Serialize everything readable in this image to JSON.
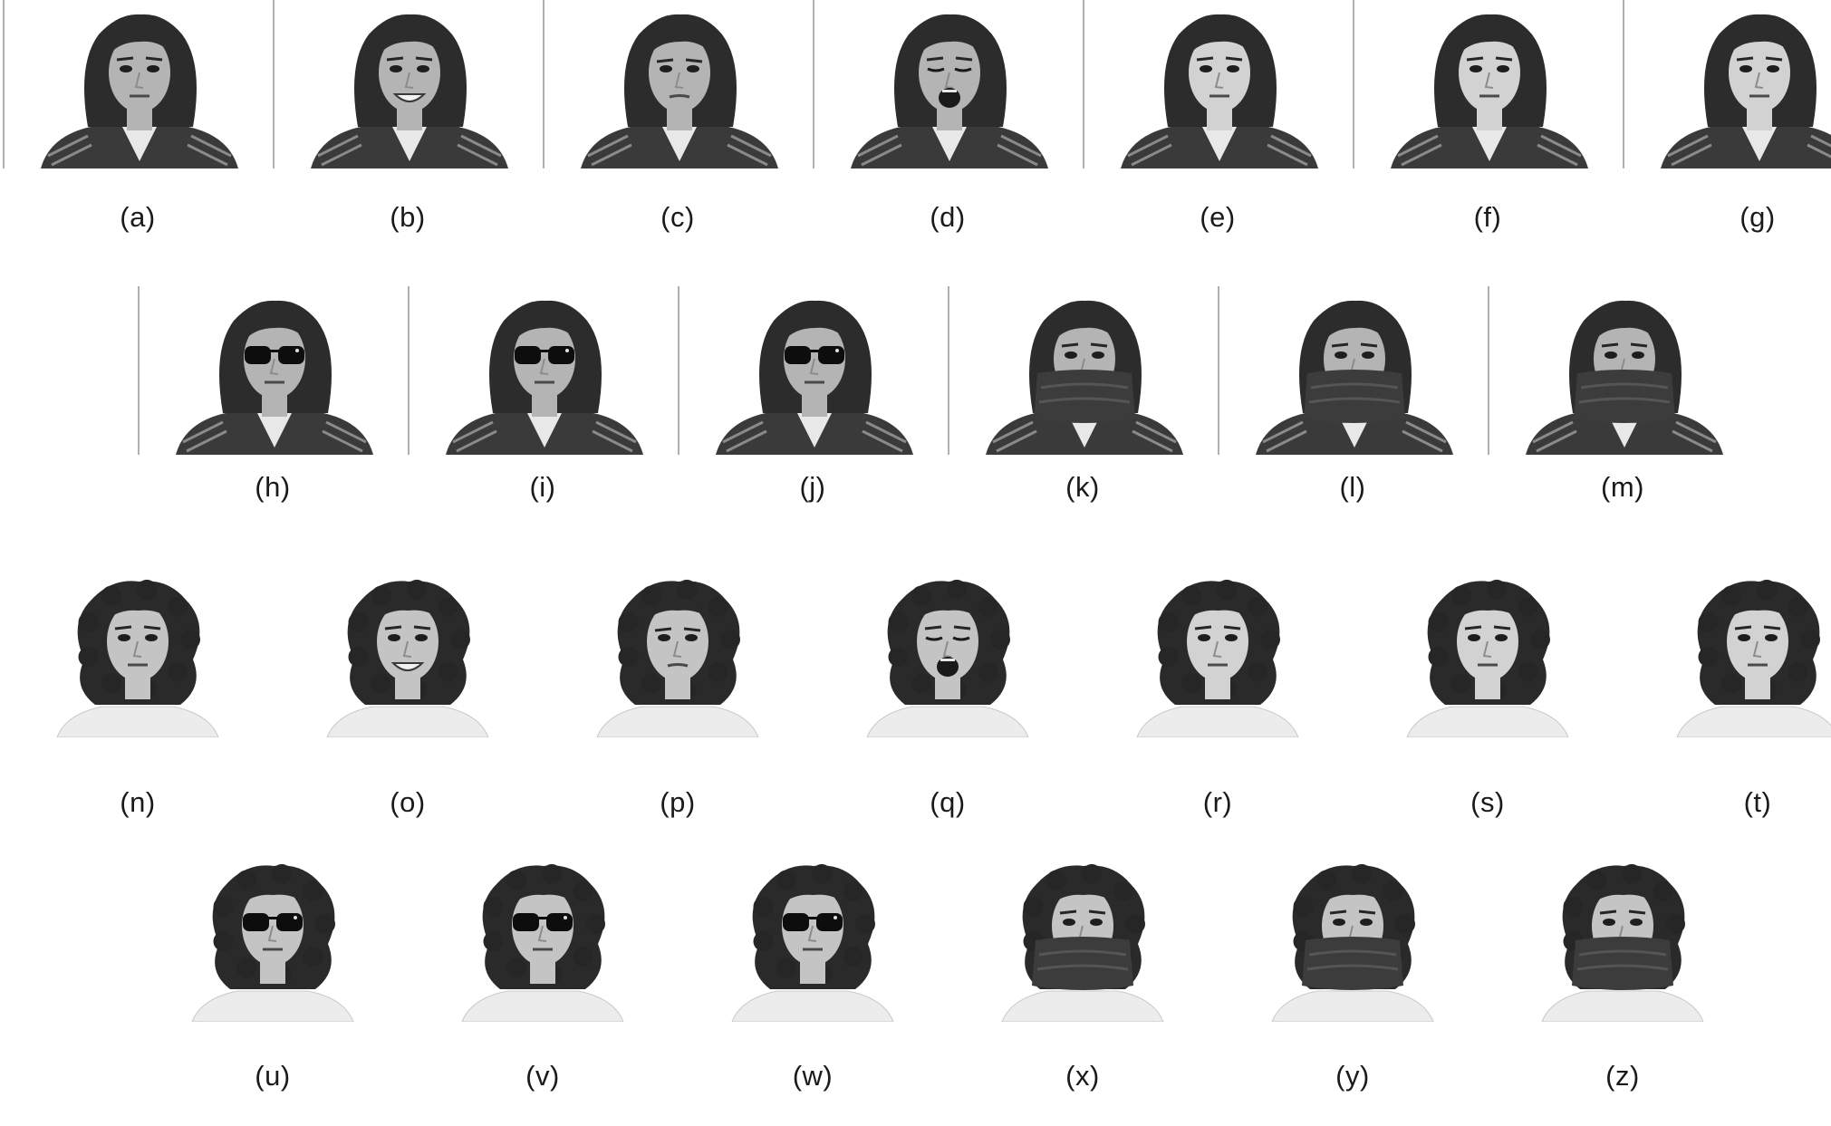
{
  "figure": {
    "rows": [
      {
        "id": "row-1",
        "subject": "straight-hair",
        "panels": [
          {
            "label": "(a)",
            "expression": "neutral",
            "occlusion": "none"
          },
          {
            "label": "(b)",
            "expression": "smile",
            "occlusion": "none"
          },
          {
            "label": "(c)",
            "expression": "anger",
            "occlusion": "none"
          },
          {
            "label": "(d)",
            "expression": "scream",
            "occlusion": "none"
          },
          {
            "label": "(e)",
            "expression": "neutral-light-left",
            "occlusion": "none"
          },
          {
            "label": "(f)",
            "expression": "neutral-light-right",
            "occlusion": "none"
          },
          {
            "label": "(g)",
            "expression": "neutral-light-both",
            "occlusion": "none"
          }
        ]
      },
      {
        "id": "row-2",
        "subject": "straight-hair",
        "panels": [
          {
            "label": "(h)",
            "expression": "neutral",
            "occlusion": "sunglasses"
          },
          {
            "label": "(i)",
            "expression": "neutral",
            "occlusion": "sunglasses"
          },
          {
            "label": "(j)",
            "expression": "neutral",
            "occlusion": "sunglasses"
          },
          {
            "label": "(k)",
            "expression": "neutral",
            "occlusion": "scarf"
          },
          {
            "label": "(l)",
            "expression": "neutral",
            "occlusion": "scarf"
          },
          {
            "label": "(m)",
            "expression": "neutral",
            "occlusion": "scarf"
          }
        ]
      },
      {
        "id": "row-3",
        "subject": "curly-hair",
        "panels": [
          {
            "label": "(n)",
            "expression": "neutral",
            "occlusion": "none"
          },
          {
            "label": "(o)",
            "expression": "smile",
            "occlusion": "none"
          },
          {
            "label": "(p)",
            "expression": "anger",
            "occlusion": "none"
          },
          {
            "label": "(q)",
            "expression": "scream",
            "occlusion": "none"
          },
          {
            "label": "(r)",
            "expression": "neutral-light-left",
            "occlusion": "none"
          },
          {
            "label": "(s)",
            "expression": "neutral-light-right",
            "occlusion": "none"
          },
          {
            "label": "(t)",
            "expression": "neutral-light-both",
            "occlusion": "none"
          }
        ]
      },
      {
        "id": "row-4",
        "subject": "curly-hair",
        "panels": [
          {
            "label": "(u)",
            "expression": "neutral",
            "occlusion": "sunglasses"
          },
          {
            "label": "(v)",
            "expression": "neutral",
            "occlusion": "sunglasses"
          },
          {
            "label": "(w)",
            "expression": "neutral",
            "occlusion": "sunglasses"
          },
          {
            "label": "(x)",
            "expression": "neutral",
            "occlusion": "scarf"
          },
          {
            "label": "(y)",
            "expression": "neutral",
            "occlusion": "scarf"
          },
          {
            "label": "(z)",
            "expression": "neutral",
            "occlusion": "scarf"
          }
        ]
      }
    ]
  }
}
